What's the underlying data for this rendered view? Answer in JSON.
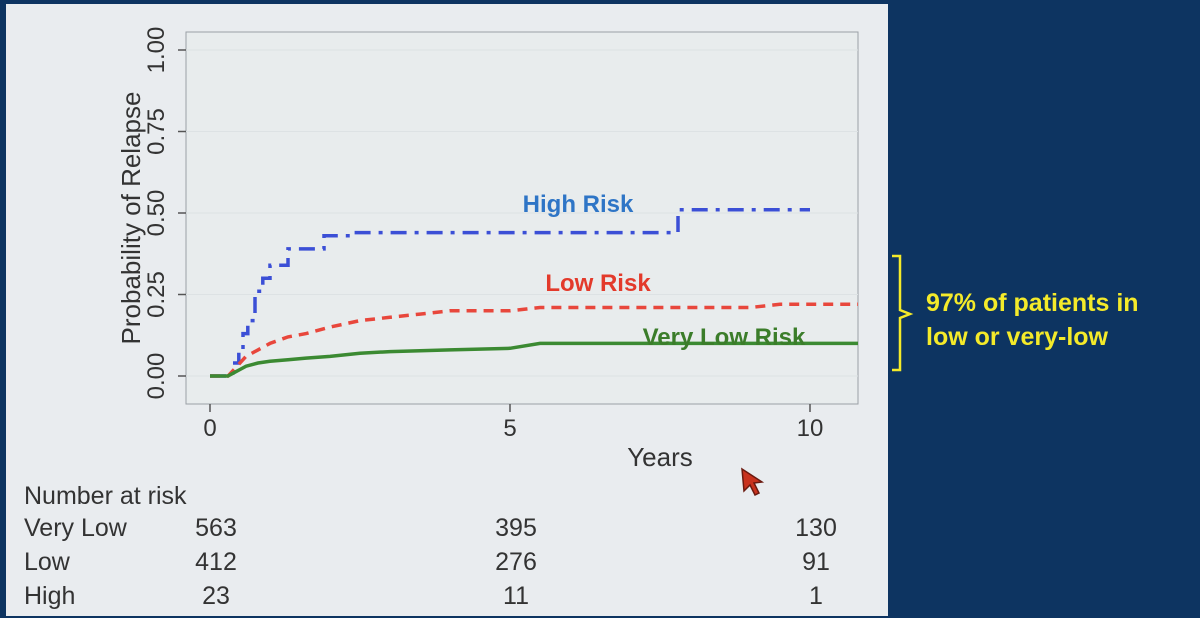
{
  "chart_data": {
    "type": "line",
    "xlabel": "Years",
    "ylabel": "Probability of Relapse",
    "xlim": [
      0,
      10.8
    ],
    "ylim": [
      0,
      1
    ],
    "x_ticks": [
      "0",
      "5",
      "10"
    ],
    "y_ticks": [
      "0.00",
      "0.25",
      "0.50",
      "0.75",
      "1.00"
    ],
    "grid": "horizontal",
    "series": [
      {
        "name": "High Risk",
        "color": "#3b4fd6",
        "style": "dashdot",
        "label_color": "#2e75c6",
        "x": [
          0,
          0.38,
          0.38,
          0.48,
          0.48,
          0.55,
          0.55,
          0.63,
          0.63,
          0.75,
          0.75,
          0.88,
          0.88,
          1.0,
          1.0,
          1.3,
          1.3,
          1.9,
          1.9,
          2.3,
          2.3,
          2.65,
          2.65,
          7.8,
          7.8,
          10
        ],
        "y": [
          0,
          0,
          0.04,
          0.04,
          0.08,
          0.08,
          0.13,
          0.13,
          0.17,
          0.17,
          0.26,
          0.26,
          0.3,
          0.3,
          0.34,
          0.34,
          0.39,
          0.39,
          0.43,
          0.43,
          0.44,
          0.44,
          0.44,
          0.44,
          0.51,
          0.51
        ]
      },
      {
        "name": "Low Risk",
        "color": "#e8473c",
        "style": "dash",
        "label_color": "#e33a2b",
        "x": [
          0,
          0.3,
          0.4,
          0.5,
          0.6,
          0.8,
          1.0,
          1.3,
          1.6,
          2.0,
          2.5,
          3.0,
          3.5,
          4.0,
          5.0,
          5.5,
          7.0,
          9.0,
          9.5,
          10.8
        ],
        "y": [
          0,
          0,
          0.02,
          0.04,
          0.06,
          0.08,
          0.1,
          0.12,
          0.13,
          0.15,
          0.17,
          0.18,
          0.19,
          0.2,
          0.2,
          0.21,
          0.21,
          0.21,
          0.22,
          0.22
        ]
      },
      {
        "name": "Very Low Risk",
        "color": "#3b8a32",
        "style": "solid",
        "label_color": "#3b7d2a",
        "x": [
          0,
          0.3,
          0.4,
          0.5,
          0.6,
          0.8,
          1.0,
          1.3,
          1.6,
          2.0,
          2.5,
          3.0,
          4.0,
          5.0,
          5.5,
          7.0,
          9.0,
          10.8
        ],
        "y": [
          0,
          0,
          0.01,
          0.02,
          0.03,
          0.04,
          0.045,
          0.05,
          0.055,
          0.06,
          0.07,
          0.075,
          0.08,
          0.085,
          0.1,
          0.1,
          0.1,
          0.1
        ]
      }
    ]
  },
  "risk_table": {
    "title": "Number at risk",
    "columns": [
      "0",
      "5",
      "10"
    ],
    "rows": [
      {
        "label": "Very Low",
        "values": [
          "563",
          "395",
          "130"
        ]
      },
      {
        "label": "Low",
        "values": [
          "412",
          "276",
          "91"
        ]
      },
      {
        "label": "High",
        "values": [
          "23",
          "11",
          "1"
        ]
      }
    ]
  },
  "annotation": {
    "line1": "97% of patients in",
    "line2": "low or very-low",
    "color": "#f4ea2a"
  }
}
